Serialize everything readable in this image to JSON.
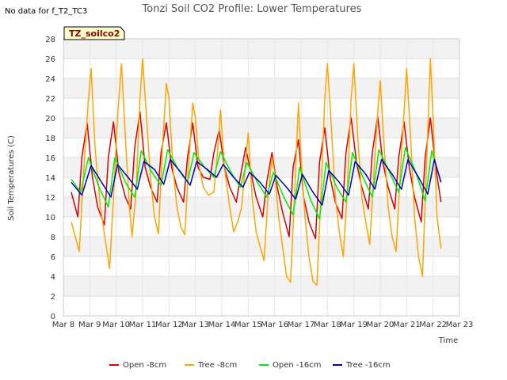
{
  "corner_note": "No data for f_T2_TC3",
  "badge_label": "TZ_soilco2",
  "chart_data": {
    "type": "line",
    "title": "Tonzi Soil CO2 Profile: Lower Temperatures",
    "xlabel": "Time",
    "ylabel": "Soil Temperatures (C)",
    "ylim": [
      0,
      28
    ],
    "xlim": [
      8,
      23
    ],
    "x_tick_values": [
      8,
      9,
      10,
      11,
      12,
      13,
      14,
      15,
      16,
      17,
      18,
      19,
      20,
      21,
      22,
      23
    ],
    "x_tick_labels": [
      "Mar 8",
      "Mar 9",
      "Mar 10",
      "Mar 11",
      "Mar 12",
      "Mar 13",
      "Mar 14",
      "Mar 15",
      "Mar 16",
      "Mar 17",
      "Mar 18",
      "Mar 19",
      "Mar 20",
      "Mar 21",
      "Mar 22",
      "Mar 23"
    ],
    "y_tick_values": [
      0,
      2,
      4,
      6,
      8,
      10,
      12,
      14,
      16,
      18,
      20,
      22,
      24,
      26,
      28
    ],
    "grid": true,
    "legend_position": "bottom",
    "series": [
      {
        "name": "Open -8cm",
        "color": "#dd0000",
        "x": [
          8.3,
          8.55,
          8.7,
          8.9,
          9.1,
          9.3,
          9.55,
          9.7,
          9.9,
          10.1,
          10.35,
          10.55,
          10.7,
          10.9,
          11.1,
          11.3,
          11.55,
          11.7,
          11.9,
          12.1,
          12.3,
          12.55,
          12.7,
          12.9,
          13.1,
          13.3,
          13.55,
          13.7,
          13.9,
          14.1,
          14.3,
          14.55,
          14.7,
          14.9,
          15.1,
          15.3,
          15.55,
          15.7,
          15.9,
          16.1,
          16.3,
          16.55,
          16.7,
          16.9,
          17.1,
          17.3,
          17.55,
          17.7,
          17.9,
          18.1,
          18.3,
          18.55,
          18.7,
          18.9,
          19.1,
          19.3,
          19.55,
          19.7,
          19.9,
          20.1,
          20.3,
          20.55,
          20.7,
          20.9,
          21.1,
          21.3,
          21.55,
          21.7,
          21.9,
          22.1,
          22.3
        ],
        "y": [
          12.5,
          10.0,
          16.0,
          19.5,
          14.0,
          11.0,
          9.2,
          16.0,
          19.6,
          14.5,
          12.0,
          10.8,
          17.0,
          20.6,
          15.0,
          13.0,
          11.5,
          16.5,
          19.5,
          15.0,
          13.0,
          11.5,
          16.0,
          19.5,
          15.0,
          14.0,
          13.8,
          16.5,
          18.8,
          15.0,
          13.0,
          11.5,
          14.0,
          17.0,
          14.5,
          12.0,
          10.0,
          13.5,
          16.5,
          13.0,
          10.5,
          8.0,
          15.0,
          17.8,
          12.0,
          9.5,
          7.8,
          15.5,
          19.0,
          14.0,
          11.5,
          9.8,
          16.5,
          20.0,
          15.5,
          13.0,
          10.8,
          16.5,
          20.2,
          15.5,
          13.0,
          10.8,
          16.0,
          19.6,
          15.0,
          12.0,
          9.5,
          16.0,
          20.0,
          15.0,
          11.5
        ]
      },
      {
        "name": "Tree -8cm",
        "color": "#ffa500",
        "x": [
          8.3,
          8.45,
          8.6,
          8.8,
          8.95,
          9.05,
          9.2,
          9.4,
          9.6,
          9.75,
          9.9,
          10.05,
          10.2,
          10.35,
          10.5,
          10.6,
          10.75,
          10.9,
          11.0,
          11.15,
          11.3,
          11.45,
          11.6,
          11.75,
          11.9,
          12.0,
          12.15,
          12.3,
          12.45,
          12.6,
          12.75,
          12.9,
          13.0,
          13.15,
          13.3,
          13.5,
          13.7,
          13.85,
          13.95,
          14.1,
          14.3,
          14.45,
          14.6,
          14.75,
          14.9,
          15.0,
          15.15,
          15.3,
          15.45,
          15.6,
          15.75,
          15.9,
          16.0,
          16.15,
          16.3,
          16.45,
          16.6,
          16.75,
          16.9,
          17.0,
          17.15,
          17.3,
          17.45,
          17.6,
          17.75,
          17.9,
          18.0,
          18.15,
          18.3,
          18.45,
          18.6,
          18.75,
          18.9,
          19.0,
          19.15,
          19.3,
          19.45,
          19.6,
          19.75,
          19.9,
          20.0,
          20.15,
          20.3,
          20.45,
          20.6,
          20.75,
          20.9,
          21.0,
          21.15,
          21.3,
          21.45,
          21.6,
          21.75,
          21.9,
          22.0,
          22.15,
          22.3
        ],
        "y": [
          9.5,
          8.0,
          6.5,
          16.0,
          22.0,
          25.0,
          17.0,
          11.0,
          7.5,
          4.8,
          12.0,
          20.0,
          25.5,
          18.0,
          11.0,
          8.0,
          12.5,
          22.0,
          26.0,
          20.0,
          14.0,
          10.0,
          8.3,
          17.0,
          23.5,
          22.0,
          15.0,
          11.0,
          9.0,
          8.2,
          15.5,
          21.5,
          20.0,
          15.0,
          13.0,
          12.2,
          12.5,
          17.0,
          20.8,
          15.0,
          11.0,
          8.5,
          9.5,
          11.0,
          15.5,
          18.5,
          12.0,
          8.5,
          7.0,
          5.6,
          12.0,
          16.0,
          14.5,
          10.0,
          7.0,
          4.0,
          3.4,
          12.0,
          21.5,
          16.0,
          10.0,
          6.0,
          3.5,
          3.1,
          12.0,
          22.0,
          25.5,
          19.0,
          12.0,
          8.5,
          6.0,
          12.5,
          22.0,
          25.5,
          18.0,
          12.0,
          9.5,
          7.2,
          14.0,
          20.5,
          23.8,
          17.0,
          11.0,
          8.0,
          6.5,
          14.0,
          20.5,
          25.0,
          18.0,
          10.0,
          6.0,
          4.0,
          15.0,
          26.0,
          20.0,
          10.0,
          6.8
        ]
      },
      {
        "name": "Open -16cm",
        "color": "#00ee00",
        "x": [
          8.3,
          8.65,
          8.95,
          9.35,
          9.7,
          9.95,
          10.35,
          10.7,
          10.95,
          11.35,
          11.7,
          11.95,
          12.35,
          12.7,
          12.95,
          13.35,
          13.7,
          13.95,
          14.35,
          14.7,
          14.95,
          15.35,
          15.7,
          15.95,
          16.35,
          16.7,
          16.95,
          17.35,
          17.7,
          17.95,
          18.35,
          18.7,
          18.95,
          19.35,
          19.7,
          19.95,
          20.35,
          20.7,
          20.95,
          21.35,
          21.7,
          21.95,
          22.3
        ],
        "y": [
          13.8,
          12.5,
          16.0,
          13.0,
          11.0,
          16.0,
          13.5,
          12.0,
          16.7,
          14.5,
          13.2,
          16.8,
          14.8,
          13.5,
          16.5,
          15.0,
          14.0,
          16.6,
          14.5,
          13.0,
          15.5,
          13.5,
          12.0,
          14.5,
          12.0,
          10.2,
          15.0,
          11.8,
          9.8,
          15.5,
          13.0,
          11.5,
          16.5,
          14.0,
          12.0,
          16.8,
          14.5,
          12.5,
          17.0,
          14.5,
          11.6,
          16.7,
          13.5
        ]
      },
      {
        "name": "Tree -16cm",
        "color": "#0000cc",
        "x": [
          8.3,
          8.7,
          9.05,
          9.45,
          9.8,
          10.05,
          10.45,
          10.8,
          11.05,
          11.45,
          11.8,
          12.05,
          12.45,
          12.8,
          13.05,
          13.45,
          13.8,
          14.05,
          14.45,
          14.8,
          15.05,
          15.45,
          15.8,
          16.05,
          16.45,
          16.8,
          17.05,
          17.45,
          17.8,
          18.05,
          18.45,
          18.8,
          19.05,
          19.45,
          19.8,
          20.05,
          20.45,
          20.8,
          21.05,
          21.45,
          21.8,
          22.05,
          22.3
        ],
        "y": [
          13.5,
          12.2,
          15.2,
          13.5,
          12.0,
          15.3,
          14.0,
          12.8,
          15.6,
          14.8,
          13.3,
          15.8,
          14.5,
          13.2,
          15.6,
          14.8,
          14.0,
          15.3,
          14.0,
          13.0,
          14.5,
          13.5,
          12.3,
          14.2,
          13.0,
          11.8,
          14.3,
          12.5,
          11.2,
          14.7,
          13.5,
          12.2,
          15.6,
          14.3,
          12.8,
          15.8,
          14.3,
          12.8,
          15.8,
          14.0,
          12.3,
          15.8,
          13.5
        ]
      }
    ]
  }
}
